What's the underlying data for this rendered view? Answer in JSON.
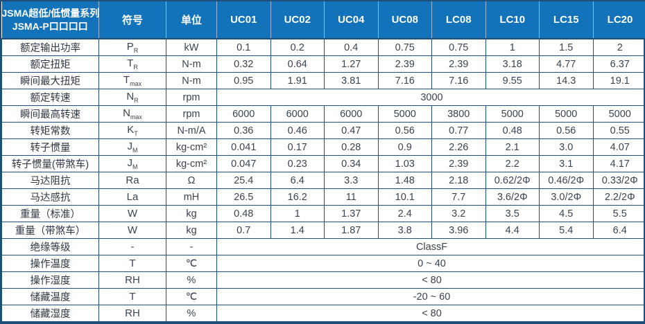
{
  "table": {
    "title_line1": "JSMA超低/低惯量系列",
    "title_line2": "JSMA-P口口口口",
    "symbol_header": "符号",
    "unit_header": "单位",
    "columns": [
      "UC01",
      "UC02",
      "UC04",
      "UC08",
      "LC08",
      "LC10",
      "LC15",
      "LC20"
    ],
    "rows": [
      {
        "label": "额定输出功率",
        "symbol": "P",
        "sub": "R",
        "unit": "kW",
        "values": [
          "0.1",
          "0.2",
          "0.4",
          "0.75",
          "0.75",
          "1",
          "1.5",
          "2"
        ]
      },
      {
        "label": "额定扭矩",
        "symbol": "T",
        "sub": "R",
        "unit": "N-m",
        "values": [
          "0.32",
          "0.64",
          "1.27",
          "2.39",
          "2.39",
          "3.18",
          "4.77",
          "6.37"
        ]
      },
      {
        "label": "瞬间最大扭矩",
        "symbol": "T",
        "sub": "max",
        "unit": "N-m",
        "values": [
          "0.95",
          "1.91",
          "3.81",
          "7.16",
          "7.16",
          "9.55",
          "14.3",
          "19.1"
        ]
      },
      {
        "label": "额定转速",
        "symbol": "N",
        "sub": "R",
        "unit": "rpm",
        "merged": "3000"
      },
      {
        "label": "瞬间最高转速",
        "symbol": "N",
        "sub": "max",
        "unit": "rpm",
        "values": [
          "6000",
          "6000",
          "6000",
          "5000",
          "3800",
          "5000",
          "5000",
          "5000"
        ]
      },
      {
        "label": "转矩常数",
        "symbol": "K",
        "sub": "T",
        "unit": "N-m/A",
        "values": [
          "0.36",
          "0.46",
          "0.47",
          "0.56",
          "0.77",
          "0.48",
          "0.56",
          "0.55"
        ]
      },
      {
        "label": "转子惯量",
        "symbol": "J",
        "sub": "M",
        "unit": "kg-cm²",
        "values": [
          "0.041",
          "0.17",
          "0.28",
          "0.9",
          "2.26",
          "2.1",
          "3.0",
          "4.07"
        ]
      },
      {
        "label": "转子惯量(带煞车)",
        "symbol": "J",
        "sub": "M",
        "unit": "kg-cm²",
        "values": [
          "0.047",
          "0.23",
          "0.34",
          "1.03",
          "2.39",
          "2.2",
          "3.1",
          "4.17"
        ]
      },
      {
        "label": "马达阻抗",
        "symbol": "Ra",
        "sub": "",
        "unit": "Ω",
        "values": [
          "25.4",
          "6.4",
          "3.3",
          "1.48",
          "2.18",
          "0.62/2Φ",
          "0.46/2Φ",
          "0.33/2Φ"
        ]
      },
      {
        "label": "马达感抗",
        "symbol": "La",
        "sub": "",
        "unit": "mH",
        "values": [
          "26.5",
          "16.2",
          "11",
          "10.1",
          "7.7",
          "3.6/2Φ",
          "3.0/2Φ",
          "2.2/2Φ"
        ]
      },
      {
        "label": "重量（标准）",
        "symbol": "W",
        "sub": "",
        "unit": "kg",
        "values": [
          "0.48",
          "1",
          "1.37",
          "2.4",
          "3.2",
          "3.5",
          "4.5",
          "5.5"
        ]
      },
      {
        "label": "重量（带煞车）",
        "symbol": "W",
        "sub": "",
        "unit": "kg",
        "values": [
          "0.7",
          "1.4",
          "1.87",
          "3.8",
          "3.96",
          "4.4",
          "5.4",
          "6.4"
        ]
      },
      {
        "label": "绝缘等级",
        "symbol": "-",
        "sub": "",
        "unit": "-",
        "merged": "ClassF"
      },
      {
        "label": "操作温度",
        "symbol": "T",
        "sub": "",
        "unit": "℃",
        "merged": "0 ~ 40"
      },
      {
        "label": "操作湿度",
        "symbol": "RH",
        "sub": "",
        "unit": "%",
        "merged": "< 80"
      },
      {
        "label": "储藏温度",
        "symbol": "T",
        "sub": "",
        "unit": "℃",
        "merged": "-20 ~ 60"
      },
      {
        "label": "储藏湿度",
        "symbol": "RH",
        "sub": "",
        "unit": "%",
        "merged": "< 80"
      }
    ]
  },
  "colors": {
    "header_bg": "#1272ba",
    "header_divider": "#9db9da",
    "border": "#1f4e79",
    "body_text": "#3a434e"
  }
}
